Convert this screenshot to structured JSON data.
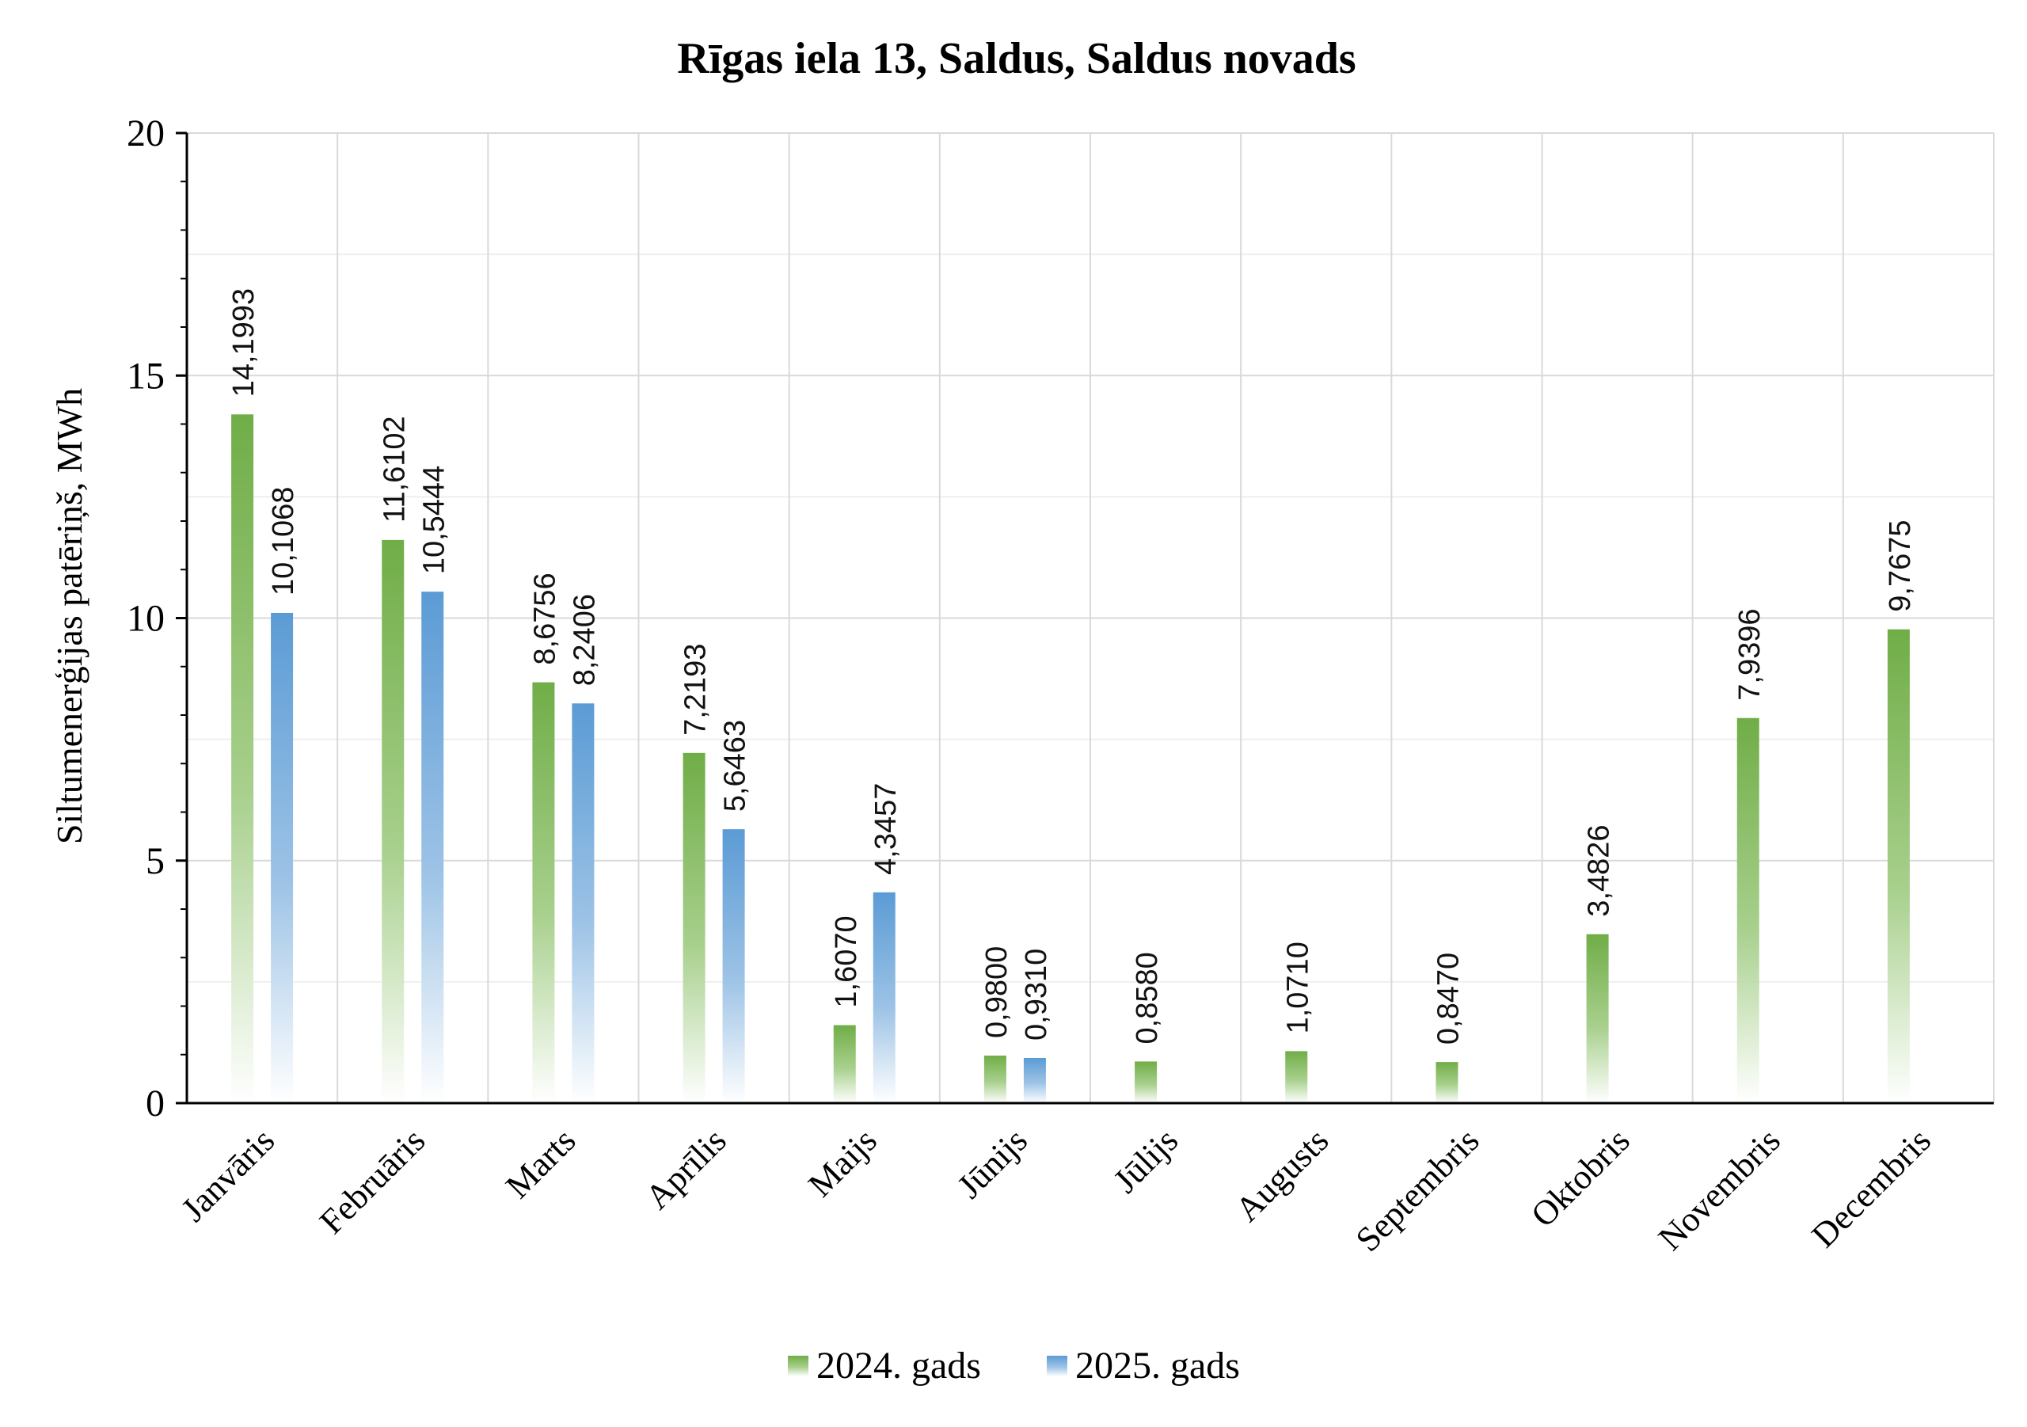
{
  "chart_data": {
    "type": "bar",
    "title": "Rīgas iela 13, Saldus, Saldus novads",
    "xlabel": "",
    "ylabel": "Siltumenerģijas patēriņš, MWh",
    "ylim": [
      0,
      20
    ],
    "yticks": [
      0,
      5,
      10,
      15,
      20
    ],
    "ytick_labels": [
      "0",
      "5",
      "10",
      "15",
      "20"
    ],
    "grid": true,
    "legend_position": "bottom",
    "categories": [
      "Janvāris",
      "Februāris",
      "Marts",
      "Aprīlis",
      "Maijs",
      "Jūnijs",
      "Jūlijs",
      "Augusts",
      "Septembris",
      "Oktobris",
      "Novembris",
      "Decembris"
    ],
    "series": [
      {
        "name": "2024. gads",
        "color": "#70ad47",
        "values": [
          14.1993,
          11.6102,
          8.6756,
          7.2193,
          1.607,
          0.98,
          0.858,
          1.071,
          0.847,
          3.4826,
          7.9396,
          9.7675
        ],
        "labels": [
          "14,1993",
          "11,6102",
          "8,6756",
          "7,2193",
          "1,6070",
          "0,9800",
          "0,8580",
          "1,0710",
          "0,8470",
          "3,4826",
          "7,9396",
          "9,7675"
        ]
      },
      {
        "name": "2025. gads",
        "color": "#5b9bd5",
        "values": [
          10.1068,
          10.5444,
          8.2406,
          5.6463,
          4.3457,
          0.931,
          null,
          null,
          null,
          null,
          null,
          null
        ],
        "labels": [
          "10,1068",
          "10,5444",
          "8,2406",
          "5,6463",
          "4,3457",
          "0,9310",
          null,
          null,
          null,
          null,
          null,
          null
        ]
      }
    ]
  }
}
